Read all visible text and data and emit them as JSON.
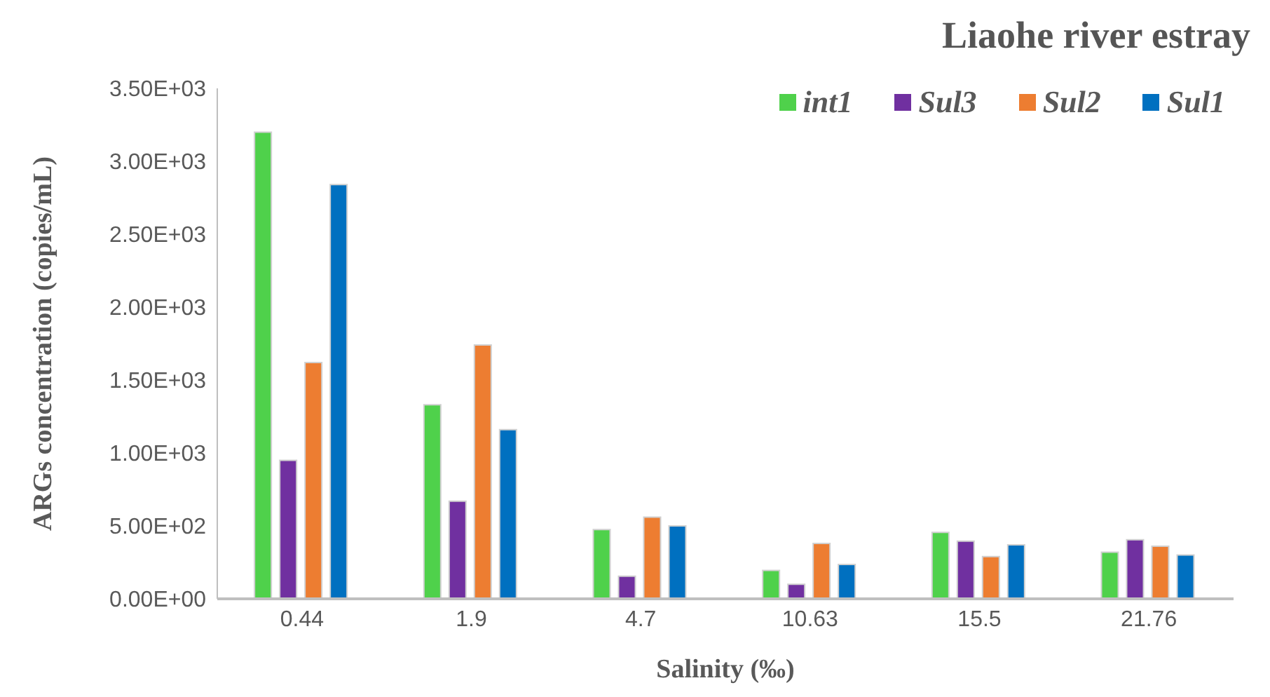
{
  "chart_data": {
    "type": "bar",
    "title": "Liaohe river estray",
    "xlabel": "Salinity (‰)",
    "ylabel": "ARGs concentration (copies/mL)",
    "categories": [
      "0.44",
      "1.9",
      "4.7",
      "10.63",
      "15.5",
      "21.76"
    ],
    "series": [
      {
        "name": "int1",
        "color": "#4fd14b",
        "values": [
          3200,
          1330,
          475,
          195,
          455,
          320
        ]
      },
      {
        "name": "Sul3",
        "color": "#7030a0",
        "values": [
          950,
          670,
          155,
          100,
          395,
          405
        ]
      },
      {
        "name": "Sul2",
        "color": "#ed7d31",
        "values": [
          1620,
          1740,
          560,
          380,
          290,
          360
        ]
      },
      {
        "name": "Sul1",
        "color": "#0070c0",
        "values": [
          2840,
          1160,
          500,
          235,
          370,
          300
        ]
      }
    ],
    "ylim": [
      0,
      3500
    ],
    "yticks": [
      {
        "value": 0,
        "label": "0.00E+00"
      },
      {
        "value": 500,
        "label": "5.00E+02"
      },
      {
        "value": 1000,
        "label": "1.00E+03"
      },
      {
        "value": 1500,
        "label": "1.50E+03"
      },
      {
        "value": 2000,
        "label": "2.00E+03"
      },
      {
        "value": 2500,
        "label": "2.50E+03"
      },
      {
        "value": 3000,
        "label": "3.00E+03"
      },
      {
        "value": 3500,
        "label": "3.50E+03"
      }
    ],
    "grid": false,
    "legend": "top right"
  }
}
